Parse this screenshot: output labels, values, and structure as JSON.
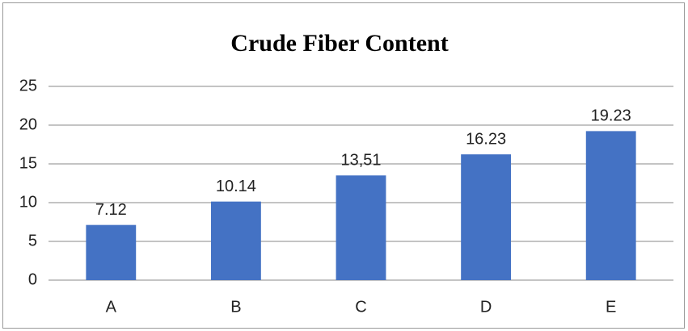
{
  "chart_data": {
    "type": "bar",
    "title": "Crude Fiber Content",
    "categories": [
      "A",
      "B",
      "C",
      "D",
      "E"
    ],
    "values": [
      7.12,
      10.14,
      13.51,
      16.23,
      19.23
    ],
    "value_labels": [
      "7.12",
      "10.14",
      "13,51",
      "16.23",
      "19.23"
    ],
    "color": "#4472c4",
    "ylim": [
      0,
      25
    ],
    "yticks": [
      0,
      5,
      10,
      15,
      20,
      25
    ],
    "grid": true
  }
}
